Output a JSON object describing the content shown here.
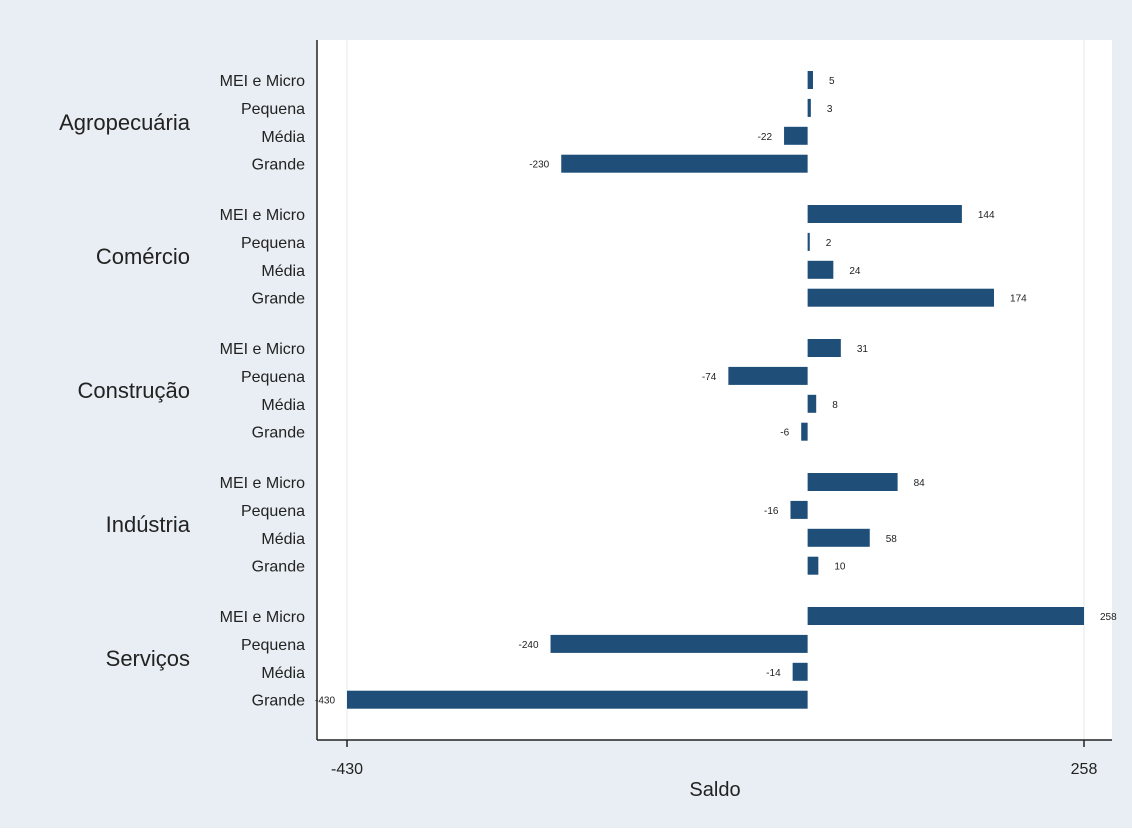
{
  "chart_data": {
    "type": "bar",
    "orientation": "horizontal",
    "title": "",
    "xlabel": "Saldo",
    "ylabel": "",
    "xlim": [
      -430,
      258
    ],
    "x_ticks": [
      -430,
      258
    ],
    "x_tick_labels": [
      "-430",
      "258"
    ],
    "grid": true,
    "legend": "none",
    "bar_color": "#1f4e79",
    "groups": [
      {
        "name": "Agropecuária",
        "categories": [
          "MEI e Micro",
          "Pequena",
          "Média",
          "Grande"
        ],
        "values": [
          5,
          3,
          -22,
          -230
        ],
        "labels": [
          "5",
          "3",
          "-22",
          "-230"
        ]
      },
      {
        "name": "Comércio",
        "categories": [
          "MEI e Micro",
          "Pequena",
          "Média",
          "Grande"
        ],
        "values": [
          144,
          2,
          24,
          174
        ],
        "labels": [
          "144",
          "2",
          "24",
          "174"
        ]
      },
      {
        "name": "Construção",
        "categories": [
          "MEI e Micro",
          "Pequena",
          "Média",
          "Grande"
        ],
        "values": [
          31,
          -74,
          8,
          -6
        ],
        "labels": [
          "31",
          "-74",
          "8",
          "-6"
        ]
      },
      {
        "name": "Indústria",
        "categories": [
          "MEI e Micro",
          "Pequena",
          "Média",
          "Grande"
        ],
        "values": [
          84,
          -16,
          58,
          10
        ],
        "labels": [
          "84",
          "-16",
          "58",
          "10"
        ]
      },
      {
        "name": "Serviços",
        "categories": [
          "MEI e Micro",
          "Pequena",
          "Média",
          "Grande"
        ],
        "values": [
          258,
          -240,
          -14,
          -430
        ],
        "labels": [
          "258",
          "-240",
          "-14",
          "-430"
        ]
      }
    ]
  },
  "colors": {
    "outer_background": "#e8eef3",
    "plot_background": "#ffffff",
    "bar": "#1f4e79",
    "axis": "#222222",
    "grid": "#e3e8ec"
  }
}
